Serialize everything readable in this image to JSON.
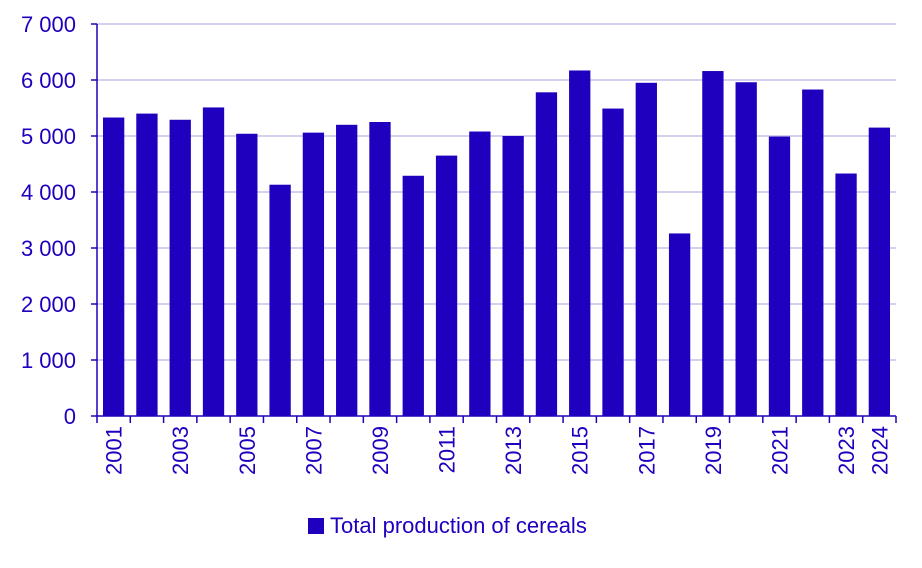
{
  "colors": {
    "bar": "#1e00be",
    "text": "#1e00be",
    "grid": "#b8b8e4",
    "axis": "#1e00be"
  },
  "chart_data": {
    "type": "bar",
    "categories": [
      "2001",
      "2002",
      "2003",
      "2004",
      "2005",
      "2006",
      "2007",
      "2008",
      "2009",
      "2010",
      "2011",
      "2012",
      "2013",
      "2014",
      "2015",
      "2016",
      "2017",
      "2018",
      "2019",
      "2020",
      "2021",
      "2022",
      "2023",
      "2024"
    ],
    "tick_labels": [
      "2001",
      "",
      "2003",
      "",
      "2005",
      "",
      "2007",
      "",
      "2009",
      "",
      "2011",
      "",
      "2013",
      "",
      "2015",
      "",
      "2017",
      "",
      "2019",
      "",
      "2021",
      "",
      "2023",
      "2024"
    ],
    "y_tick_labels": [
      "0",
      "1 000",
      "2 000",
      "3 000",
      "4 000",
      "5 000",
      "6 000",
      "7 000"
    ],
    "y_ticks": [
      0,
      1000,
      2000,
      3000,
      4000,
      5000,
      6000,
      7000
    ],
    "ylim": [
      0,
      7000
    ],
    "grid": true,
    "legend_position": "bottom",
    "series": [
      {
        "name": "Total production of cereals",
        "values": [
          5330,
          5400,
          5290,
          5510,
          5040,
          4130,
          5060,
          5200,
          5250,
          4290,
          4650,
          5080,
          5000,
          5780,
          6170,
          5490,
          5950,
          3260,
          6160,
          5960,
          4990,
          5830,
          4330,
          5150
        ]
      }
    ]
  }
}
